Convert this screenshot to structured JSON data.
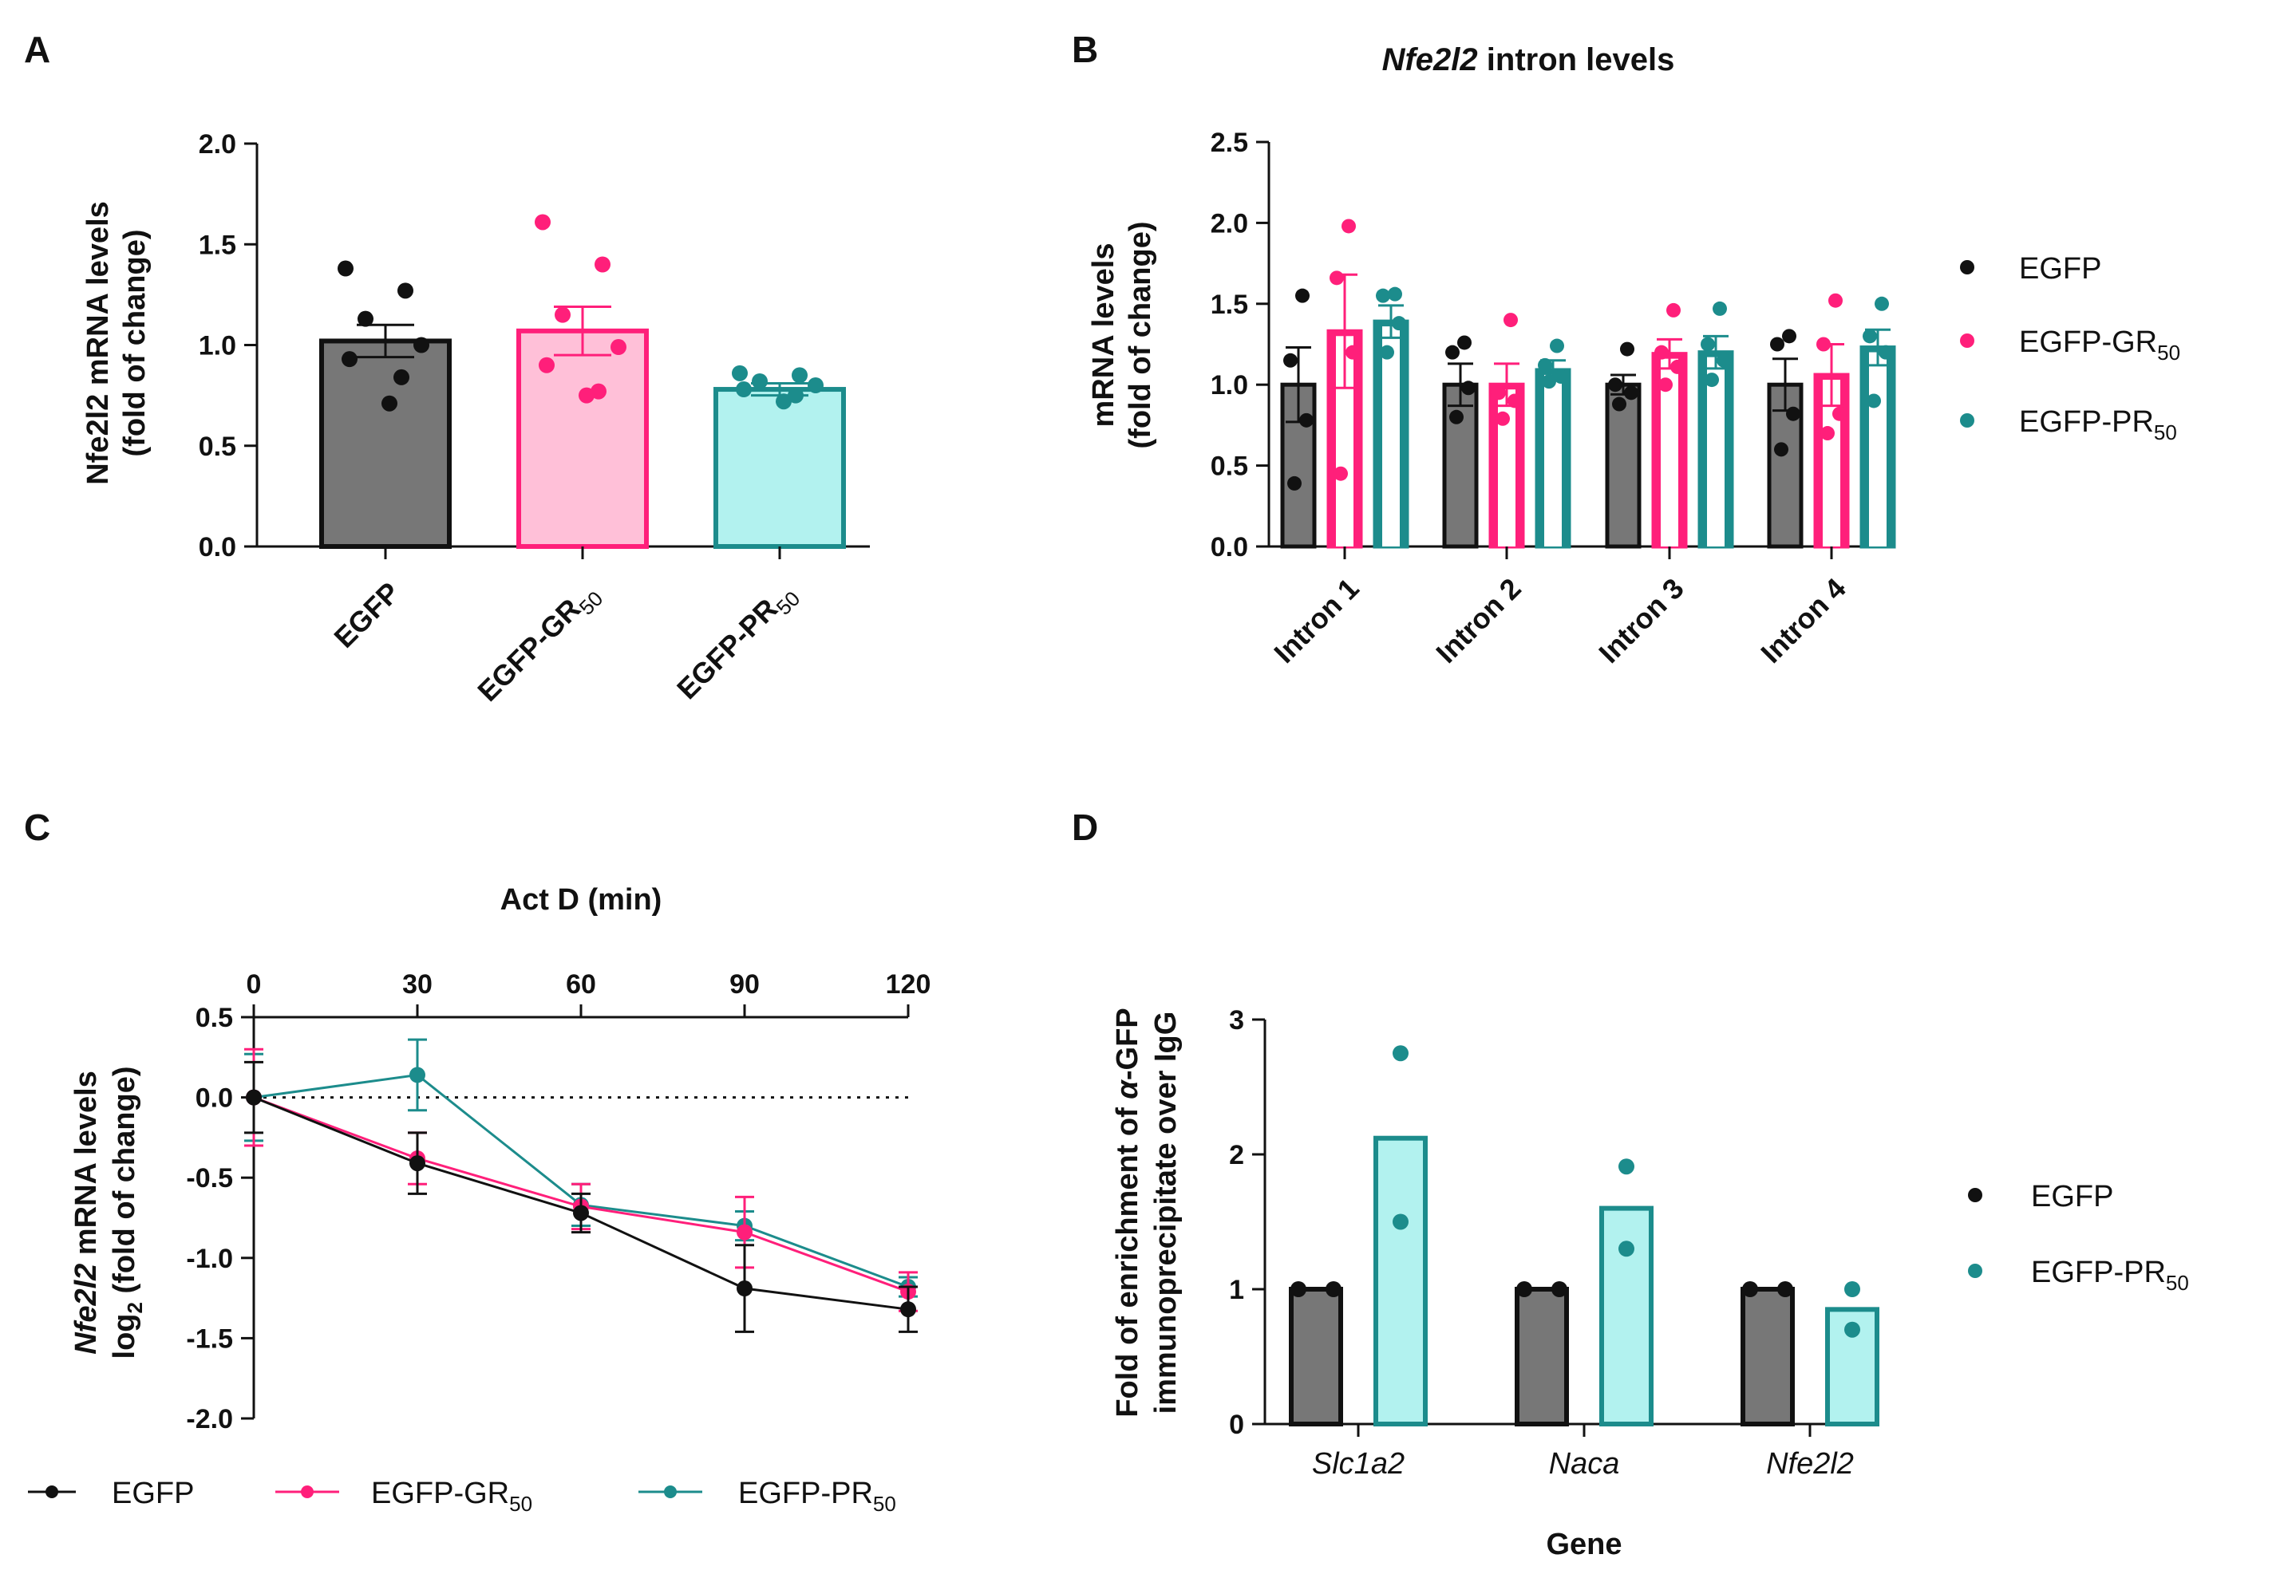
{
  "colors": {
    "egfp": "#111111",
    "egfp_bar": "#777777",
    "gr": "#ff1f7a",
    "gr_fill": "#ffc0d8",
    "pr": "#1c8c8c",
    "pr_fill": "#b2f2ef"
  },
  "legend": {
    "egfp": "EGFP",
    "gr": "EGFP-GR",
    "pr": "EGFP-PR",
    "subscript": "50"
  },
  "chart_data": [
    {
      "panel": "A",
      "type": "bar",
      "title": "",
      "ylabel_line1": "Nfe2l2 mRNA levels",
      "ylabel_line2": "(fold of change)",
      "categories": [
        "EGFP",
        "EGFP-GR",
        "EGFP-PR"
      ],
      "category_subscripts": [
        "",
        "50",
        "50"
      ],
      "values": [
        1.02,
        1.07,
        0.78
      ],
      "errors": [
        0.08,
        0.12,
        0.03
      ],
      "points": [
        [
          1.38,
          1.27,
          1.13,
          1.0,
          0.93,
          0.84,
          0.71
        ],
        [
          1.61,
          1.4,
          1.15,
          0.99,
          0.9,
          0.77,
          0.75
        ],
        [
          0.86,
          0.85,
          0.82,
          0.8,
          0.78,
          0.75,
          0.72
        ]
      ],
      "ylim": [
        0,
        2.0
      ],
      "yticks": [
        "0.0",
        "0.5",
        "1.0",
        "1.5",
        "2.0"
      ]
    },
    {
      "panel": "B",
      "type": "bar",
      "title_italic": "Nfe2l2",
      "title_rest": " intron levels",
      "ylabel_line1": "mRNA levels",
      "ylabel_line2": "(fold of change)",
      "categories": [
        "Intron 1",
        "Intron 2",
        "Intron 3",
        "Intron 4"
      ],
      "series": [
        {
          "name": "EGFP",
          "values": [
            1.0,
            1.0,
            1.0,
            1.0
          ],
          "errors": [
            0.23,
            0.13,
            0.06,
            0.16
          ],
          "points": [
            [
              1.55,
              1.15,
              0.78,
              0.39
            ],
            [
              1.26,
              1.2,
              0.98,
              0.8
            ],
            [
              1.22,
              1.0,
              0.95,
              0.88
            ],
            [
              1.3,
              1.25,
              0.82,
              0.6
            ]
          ]
        },
        {
          "name": "EGFP-GR",
          "values": [
            1.33,
            1.0,
            1.19,
            1.06
          ],
          "errors": [
            0.35,
            0.13,
            0.09,
            0.19
          ],
          "points": [
            [
              1.98,
              1.66,
              1.2,
              0.45
            ],
            [
              1.4,
              0.95,
              0.9,
              0.79
            ],
            [
              1.46,
              1.2,
              1.11,
              1.0
            ],
            [
              1.52,
              1.25,
              0.82,
              0.7
            ]
          ]
        },
        {
          "name": "EGFP-PR",
          "values": [
            1.39,
            1.09,
            1.2,
            1.23
          ],
          "errors": [
            0.1,
            0.06,
            0.1,
            0.11
          ],
          "points": [
            [
              1.56,
              1.55,
              1.38,
              1.2
            ],
            [
              1.24,
              1.12,
              1.05,
              1.02
            ],
            [
              1.47,
              1.25,
              1.15,
              1.03
            ],
            [
              1.5,
              1.3,
              1.2,
              0.9
            ]
          ]
        }
      ],
      "ylim": [
        0,
        2.5
      ],
      "yticks": [
        "0.0",
        "0.5",
        "1.0",
        "1.5",
        "2.0",
        "2.5"
      ]
    },
    {
      "panel": "C",
      "type": "line",
      "title": "Act D (min)",
      "ylabel_italic": "Nfe2l2",
      "ylabel_line1_rest": " mRNA levels",
      "ylabel_line2": "log",
      "ylabel_line2_sub": "2",
      "ylabel_line2_rest": " (fold of change)",
      "x": [
        0,
        30,
        60,
        90,
        120
      ],
      "xticks": [
        "0",
        "30",
        "60",
        "90",
        "120"
      ],
      "series": [
        {
          "name": "EGFP",
          "values": [
            0.0,
            -0.41,
            -0.72,
            -1.19,
            -1.32
          ],
          "errors": [
            0.22,
            0.19,
            0.12,
            0.27,
            0.14
          ]
        },
        {
          "name": "EGFP-GR",
          "values": [
            0.0,
            -0.38,
            -0.68,
            -0.84,
            -1.21
          ],
          "errors": [
            0.3,
            0.16,
            0.14,
            0.22,
            0.12
          ]
        },
        {
          "name": "EGFP-PR",
          "values": [
            0.0,
            0.14,
            -0.67,
            -0.8,
            -1.18
          ],
          "errors": [
            0.27,
            0.22,
            0.13,
            0.09,
            0.06
          ]
        }
      ],
      "xlim": [
        0,
        120
      ],
      "ylim": [
        -2.0,
        0.5
      ],
      "yticks": [
        "-2.0",
        "-1.5",
        "-1.0",
        "-0.5",
        "0.0",
        "0.5"
      ]
    },
    {
      "panel": "D",
      "type": "bar",
      "title": "",
      "xlabel": "Gene",
      "ylabel_line1_pre": "Fold of enrichment of ",
      "ylabel_line1_alpha": "α",
      "ylabel_line1_post": "-GFP",
      "ylabel_line2": "immunoprecipitate over IgG",
      "categories": [
        "Slc1a2",
        "Naca",
        "Nfe2l2"
      ],
      "series": [
        {
          "name": "EGFP",
          "values": [
            1.0,
            1.0,
            1.0
          ],
          "points": [
            [
              1.0,
              1.0
            ],
            [
              1.0,
              1.0
            ],
            [
              1.0,
              1.0
            ]
          ]
        },
        {
          "name": "EGFP-PR",
          "values": [
            2.12,
            1.6,
            0.85
          ],
          "points": [
            [
              2.75,
              1.5
            ],
            [
              1.91,
              1.3
            ],
            [
              1.0,
              0.7
            ]
          ]
        }
      ],
      "ylim": [
        0,
        3
      ],
      "yticks": [
        "0",
        "1",
        "2",
        "3"
      ]
    }
  ]
}
